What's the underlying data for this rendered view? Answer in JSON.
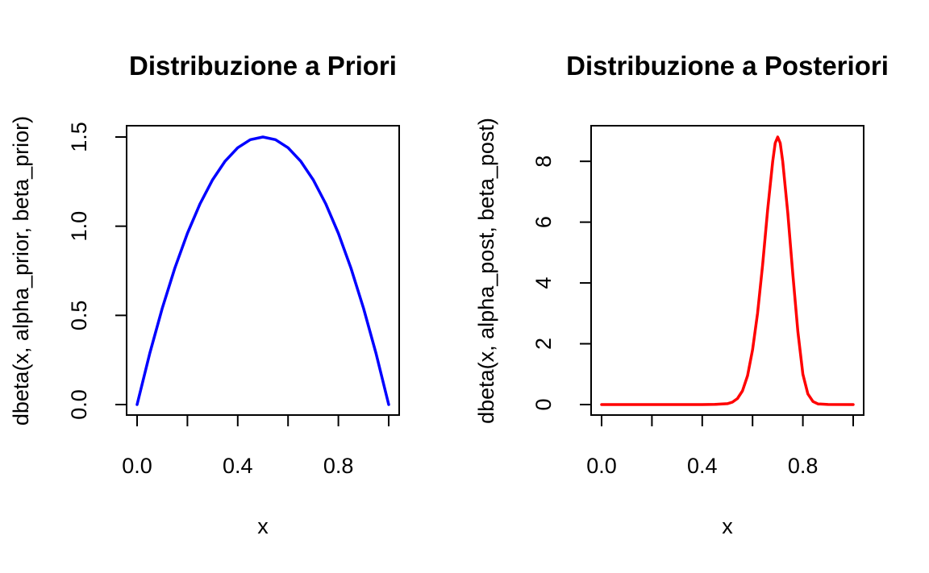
{
  "chart_data": [
    {
      "type": "line",
      "title": "Distribuzione a Priori",
      "xlabel": "x",
      "ylabel": "dbeta(x, alpha_prior, beta_prior)",
      "xlim": [
        0,
        1
      ],
      "ylim": [
        0,
        1.5
      ],
      "x_ticks": [
        0,
        0.2,
        0.4,
        0.6,
        0.8,
        1.0
      ],
      "x_tick_labels": [
        "0.0",
        "",
        "0.4",
        "",
        "0.8",
        ""
      ],
      "y_ticks": [
        0,
        0.5,
        1.0,
        1.5
      ],
      "y_tick_labels": [
        "0.0",
        "0.5",
        "1.0",
        "1.5"
      ],
      "grid": false,
      "series": [
        {
          "color": "#0000ff",
          "x": [
            0,
            0.05,
            0.1,
            0.15,
            0.2,
            0.25,
            0.3,
            0.35,
            0.4,
            0.45,
            0.5,
            0.55,
            0.6,
            0.65,
            0.7,
            0.75,
            0.8,
            0.85,
            0.9,
            0.95,
            1.0
          ],
          "y": [
            0,
            0.285,
            0.54,
            0.765,
            0.96,
            1.125,
            1.26,
            1.365,
            1.44,
            1.485,
            1.5,
            1.485,
            1.44,
            1.365,
            1.26,
            1.125,
            0.96,
            0.765,
            0.54,
            0.285,
            0
          ]
        }
      ]
    },
    {
      "type": "line",
      "title": "Distribuzione a Posteriori",
      "xlabel": "x",
      "ylabel": "dbeta(x, alpha_post, beta_post)",
      "xlim": [
        0,
        1
      ],
      "ylim": [
        0,
        8.8
      ],
      "x_ticks": [
        0,
        0.2,
        0.4,
        0.6,
        0.8,
        1.0
      ],
      "x_tick_labels": [
        "0.0",
        "",
        "0.4",
        "",
        "0.8",
        ""
      ],
      "y_ticks": [
        0,
        2,
        4,
        6,
        8
      ],
      "y_tick_labels": [
        "0",
        "2",
        "4",
        "6",
        "8"
      ],
      "grid": false,
      "series": [
        {
          "color": "#ff0000",
          "x": [
            0,
            0.1,
            0.2,
            0.3,
            0.4,
            0.45,
            0.5,
            0.52,
            0.54,
            0.56,
            0.58,
            0.6,
            0.62,
            0.64,
            0.66,
            0.68,
            0.69,
            0.7,
            0.71,
            0.72,
            0.74,
            0.76,
            0.78,
            0.8,
            0.82,
            0.84,
            0.86,
            0.9,
            1.0
          ],
          "y": [
            0,
            0,
            0,
            0,
            0,
            0.004,
            0.03,
            0.08,
            0.2,
            0.45,
            0.95,
            1.8,
            3.0,
            4.6,
            6.4,
            8.0,
            8.6,
            8.8,
            8.6,
            8.0,
            6.3,
            4.3,
            2.4,
            1.0,
            0.35,
            0.1,
            0.02,
            0.002,
            0
          ]
        }
      ]
    }
  ]
}
